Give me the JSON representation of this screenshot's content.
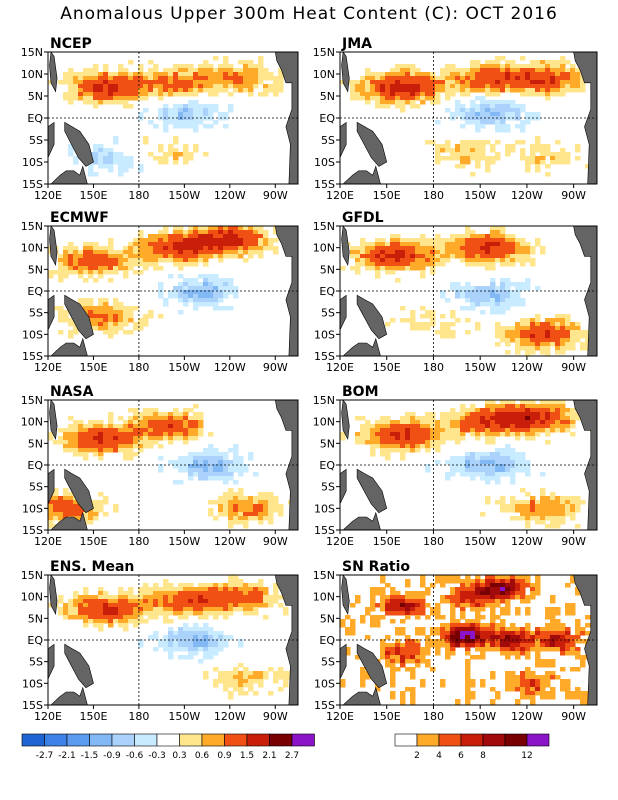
{
  "title": "Anomalous Upper 300m Heat Content (C): OCT 2016",
  "chart_data": [
    {
      "type": "heatmap",
      "title": "NCEP",
      "x_ticks": [
        "120E",
        "150E",
        "180",
        "150W",
        "120W",
        "90W"
      ],
      "y_ticks": [
        "15N",
        "10N",
        "5N",
        "EQ",
        "5S",
        "10S",
        "15S"
      ],
      "features": [
        {
          "lon": 160,
          "lat": 7,
          "value": 1.6
        },
        {
          "lon": 205,
          "lat": 8,
          "value": 1.0
        },
        {
          "lon": 245,
          "lat": 9,
          "value": 0.9
        },
        {
          "lon": 210,
          "lat": 1,
          "value": -0.8
        },
        {
          "lon": 160,
          "lat": -9,
          "value": -0.6
        },
        {
          "lon": 200,
          "lat": -8,
          "value": 0.5
        }
      ]
    },
    {
      "type": "heatmap",
      "title": "JMA",
      "x_ticks": [
        "120E",
        "150E",
        "180",
        "150W",
        "120W",
        "90W"
      ],
      "y_ticks": [
        "15N",
        "10N",
        "5N",
        "EQ",
        "5S",
        "10S",
        "15S"
      ],
      "features": [
        {
          "lon": 160,
          "lat": 7,
          "value": 1.8
        },
        {
          "lon": 215,
          "lat": 9,
          "value": 1.1
        },
        {
          "lon": 250,
          "lat": 9,
          "value": 1.4
        },
        {
          "lon": 215,
          "lat": 1,
          "value": -0.9
        },
        {
          "lon": 200,
          "lat": -8,
          "value": 0.6
        },
        {
          "lon": 250,
          "lat": -9,
          "value": 0.5
        }
      ]
    },
    {
      "type": "heatmap",
      "title": "ECMWF",
      "x_ticks": [
        "120E",
        "150E",
        "180",
        "150W",
        "120W",
        "90W"
      ],
      "y_ticks": [
        "15N",
        "10N",
        "5N",
        "EQ",
        "5S",
        "10S",
        "15S"
      ],
      "features": [
        {
          "lon": 150,
          "lat": 7,
          "value": 1.3
        },
        {
          "lon": 205,
          "lat": 10,
          "value": 1.5
        },
        {
          "lon": 240,
          "lat": 12,
          "value": 1.7
        },
        {
          "lon": 220,
          "lat": 0,
          "value": -0.9
        },
        {
          "lon": 155,
          "lat": -6,
          "value": 1.0
        }
      ]
    },
    {
      "type": "heatmap",
      "title": "GFDL",
      "x_ticks": [
        "120E",
        "150E",
        "180",
        "150W",
        "120W",
        "90W"
      ],
      "y_ticks": [
        "15N",
        "10N",
        "5N",
        "EQ",
        "5S",
        "10S",
        "15S"
      ],
      "features": [
        {
          "lon": 155,
          "lat": 8,
          "value": 1.7
        },
        {
          "lon": 215,
          "lat": 10,
          "value": 1.6
        },
        {
          "lon": 250,
          "lat": -10,
          "value": 1.4
        },
        {
          "lon": 215,
          "lat": -1,
          "value": -0.9
        },
        {
          "lon": 180,
          "lat": -7,
          "value": 0.4
        }
      ]
    },
    {
      "type": "heatmap",
      "title": "NASA",
      "x_ticks": [
        "120E",
        "150E",
        "180",
        "150W",
        "120W",
        "90W"
      ],
      "y_ticks": [
        "15N",
        "10N",
        "5N",
        "EQ",
        "5S",
        "10S",
        "15S"
      ],
      "features": [
        {
          "lon": 155,
          "lat": 6,
          "value": 1.5
        },
        {
          "lon": 200,
          "lat": 9,
          "value": 1.3
        },
        {
          "lon": 225,
          "lat": 0,
          "value": -1.0
        },
        {
          "lon": 250,
          "lat": -10,
          "value": 0.9
        },
        {
          "lon": 130,
          "lat": -10,
          "value": 1.2
        }
      ]
    },
    {
      "type": "heatmap",
      "title": "BOM",
      "x_ticks": [
        "120E",
        "150E",
        "180",
        "150W",
        "120W",
        "90W"
      ],
      "y_ticks": [
        "15N",
        "10N",
        "5N",
        "EQ",
        "5S",
        "10S",
        "15S"
      ],
      "features": [
        {
          "lon": 160,
          "lat": 7,
          "value": 1.6
        },
        {
          "lon": 215,
          "lat": 10,
          "value": 1.3
        },
        {
          "lon": 245,
          "lat": 11,
          "value": 1.6
        },
        {
          "lon": 215,
          "lat": 0,
          "value": -1.0
        },
        {
          "lon": 250,
          "lat": -10,
          "value": 0.9
        }
      ]
    },
    {
      "type": "heatmap",
      "title": "ENS. Mean",
      "x_ticks": [
        "120E",
        "150E",
        "180",
        "150W",
        "120W",
        "90W"
      ],
      "y_ticks": [
        "15N",
        "10N",
        "5N",
        "EQ",
        "5S",
        "10S",
        "15S"
      ],
      "features": [
        {
          "lon": 158,
          "lat": 7,
          "value": 1.6
        },
        {
          "lon": 210,
          "lat": 9,
          "value": 1.2
        },
        {
          "lon": 245,
          "lat": 10,
          "value": 1.2
        },
        {
          "lon": 215,
          "lat": 0,
          "value": -0.9
        },
        {
          "lon": 250,
          "lat": -9,
          "value": 0.6
        }
      ]
    },
    {
      "type": "heatmap",
      "title": "SN Ratio",
      "x_ticks": [
        "120E",
        "150E",
        "180",
        "150W",
        "120W",
        "90W"
      ],
      "y_ticks": [
        "15N",
        "10N",
        "5N",
        "EQ",
        "5S",
        "10S",
        "15S"
      ],
      "features": [
        {
          "lon": 160,
          "lat": 8,
          "value": 8
        },
        {
          "lon": 205,
          "lat": 10,
          "value": 7
        },
        {
          "lon": 225,
          "lat": 12,
          "value": 10
        },
        {
          "lon": 200,
          "lat": 1,
          "value": 12
        },
        {
          "lon": 230,
          "lat": 0,
          "value": 9
        },
        {
          "lon": 260,
          "lat": 0,
          "value": 7
        },
        {
          "lon": 160,
          "lat": -3,
          "value": 6
        },
        {
          "lon": 245,
          "lat": -10,
          "value": 5
        }
      ]
    }
  ],
  "colorbar_anomaly": {
    "labels": [
      "-2.7",
      "-2.1",
      "-1.5",
      "-0.9",
      "-0.6",
      "-0.3",
      "0.3",
      "0.6",
      "0.9",
      "1.5",
      "2.1",
      "2.7"
    ],
    "colors": [
      "#1e64d2",
      "#3c82e6",
      "#5a9bf0",
      "#82b9f5",
      "#aad2fa",
      "#c8ebff",
      "#ffffff",
      "#ffe68c",
      "#ffaa28",
      "#f05014",
      "#c81e0a",
      "#780000",
      "#8c14c8"
    ]
  },
  "colorbar_sn": {
    "labels": [
      "2",
      "4",
      "6",
      "8",
      "12"
    ],
    "colors": [
      "#ffffff",
      "#ffaa28",
      "#f05014",
      "#c81e0a",
      "#a00a0a",
      "#780000",
      "#8c14c8"
    ]
  },
  "land_color": "#646464"
}
